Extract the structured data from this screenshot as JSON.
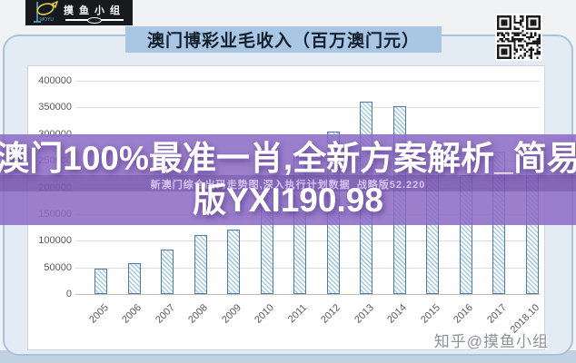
{
  "header": {
    "logo": {
      "brand_cn": "摸鱼小组",
      "brand_en": "MOYU"
    },
    "title_banner": "澳门博彩业毛收入（百万澳门元）"
  },
  "chart_data": {
    "type": "bar",
    "title": "澳门博彩业毛收入（百万澳门元）",
    "categories": [
      "2005",
      "2006",
      "2007",
      "2008",
      "2009",
      "2010",
      "2011",
      "2012",
      "2013",
      "2014",
      "2015",
      "2016",
      "2017",
      "2018.10"
    ],
    "values": [
      47000,
      57500,
      84000,
      110000,
      120400,
      189600,
      269000,
      305000,
      361000,
      352000,
      230800,
      223200,
      266500,
      251000
    ],
    "xlabel": "",
    "ylabel": "",
    "ylim": [
      0,
      400000
    ],
    "ytick_interval": 50000,
    "ytick_labels": [
      "0",
      "50000",
      "100000",
      "150000",
      "200000",
      "250000",
      "300000",
      "350000",
      "400000"
    ],
    "grid": true,
    "legend": "none",
    "bar_style": "diagonal-hatch"
  },
  "overlay": {
    "text_full": "澳门100%最准一肖,全新方案解析_简易版YXI190.98",
    "line1": "澳门100%最准一肖,全新方案解析_简易",
    "line2": "版YXI190.98",
    "subtext": "新澳门综合出码走势图,深入执行计划数据_战略版52.220"
  },
  "watermark": {
    "text": "知乎@摸鱼小组"
  },
  "colors": {
    "card_bg": "#e3ecf5",
    "card_border": "#a9c3da",
    "banner_bg": "#a9c7e5",
    "banner_text": "#14202c",
    "bar_border": "#4d7cb3",
    "bar_hatch": "#a8cade",
    "overlay_purple": "#8c6cc6",
    "logo_bg": "#17191d",
    "logo_fish_yellow": "#e3cf4a",
    "logo_blue": "#55b2d6"
  }
}
